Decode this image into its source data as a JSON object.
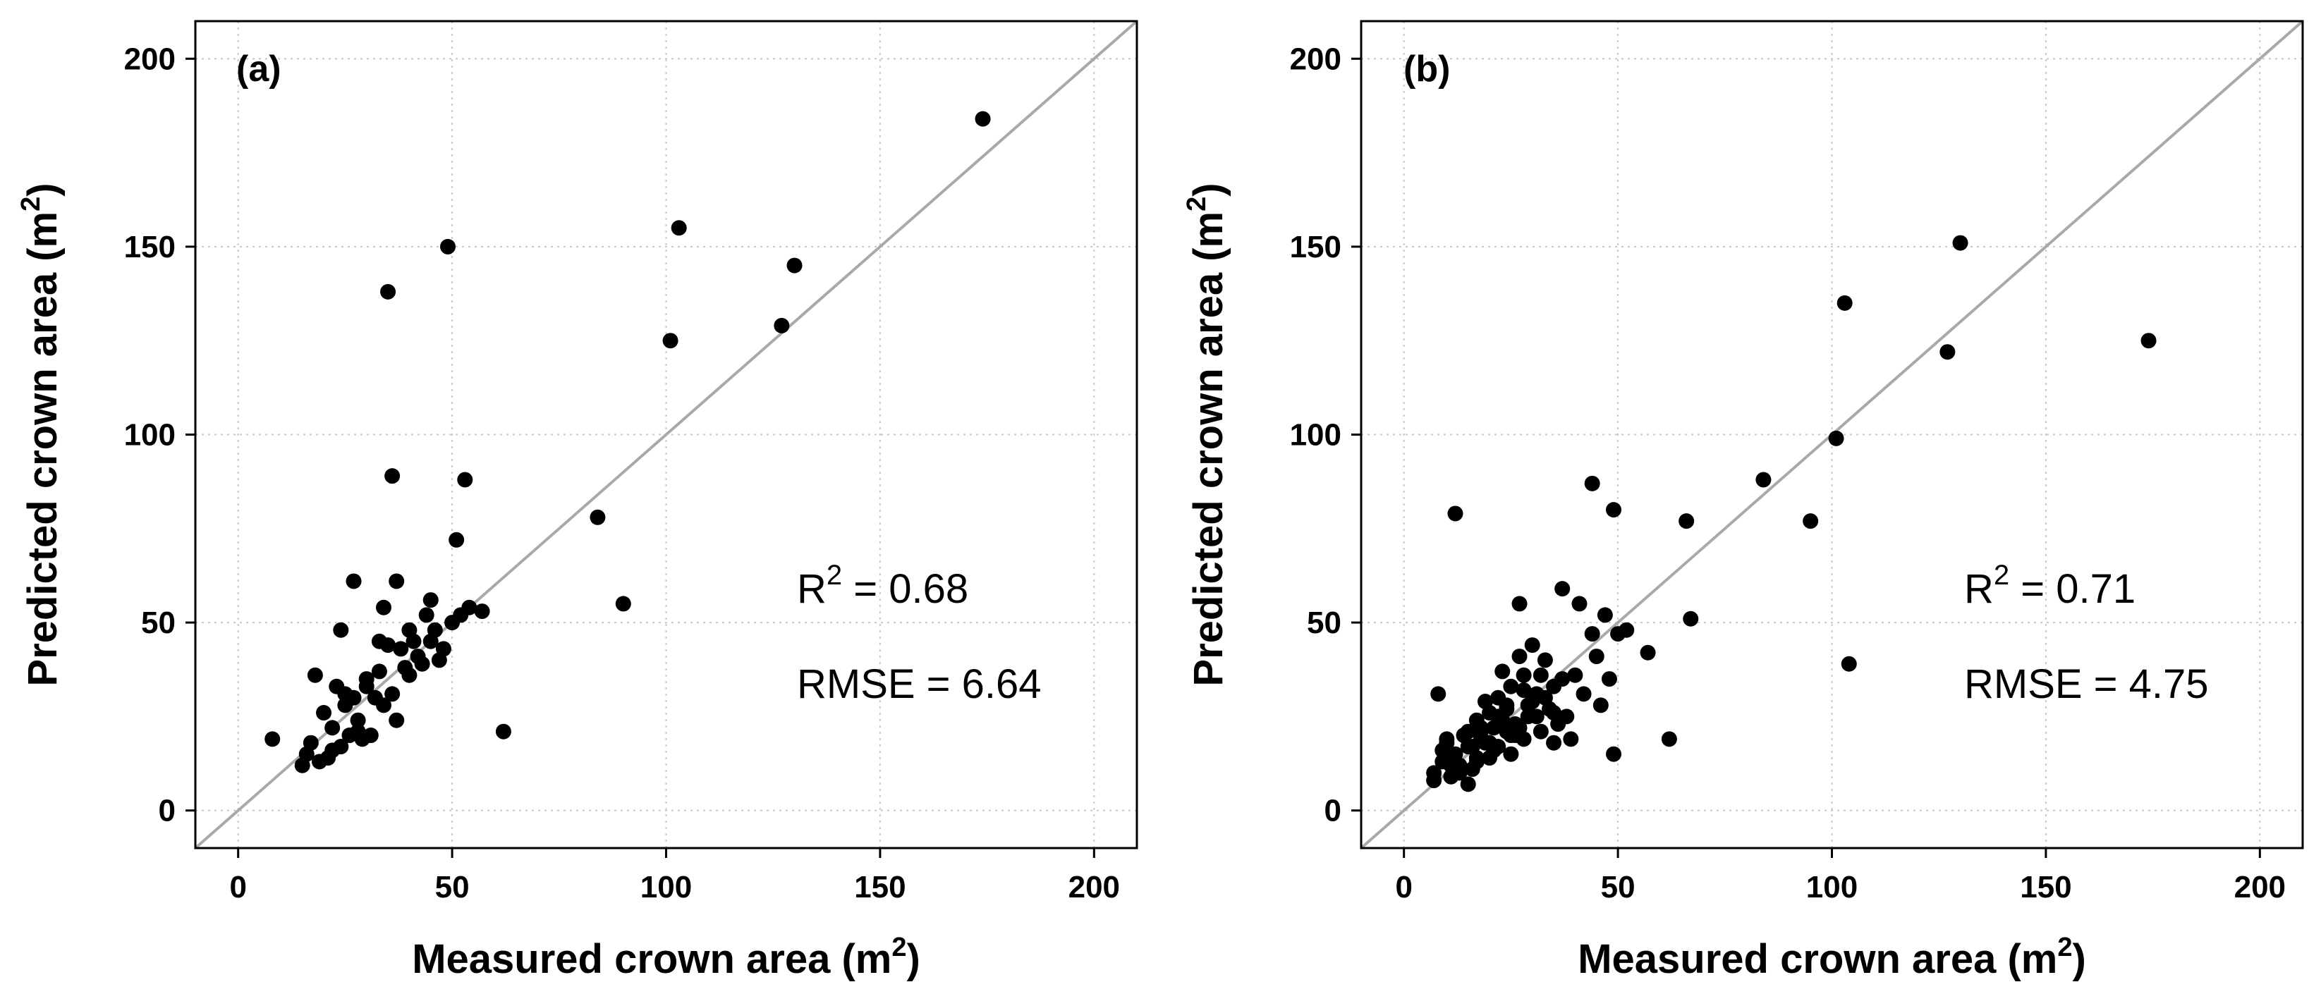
{
  "chart_data": [
    {
      "type": "scatter",
      "panel_label": "(a)",
      "xlabel": "Measured crown area (m",
      "ylabel": "Predicted crown area (m",
      "label_superscript": "2",
      "label_close": ")",
      "xlim": [
        -10,
        210
      ],
      "ylim": [
        -10,
        210
      ],
      "xticks": [
        0,
        50,
        100,
        150,
        200
      ],
      "yticks": [
        0,
        50,
        100,
        150,
        200
      ],
      "grid": true,
      "one_to_one_line": true,
      "annotations": {
        "r2_base": "R",
        "r2_sup": "2",
        "r2_rest": " = 0.68",
        "rmse": "RMSE = 6.64"
      },
      "x": [
        174,
        103,
        130,
        127,
        101,
        49,
        35,
        36,
        37,
        53,
        51,
        84,
        90,
        62,
        57,
        54,
        8,
        15,
        16,
        17,
        18,
        19,
        20,
        21,
        22,
        22,
        23,
        24,
        24,
        25,
        25,
        26,
        27,
        27,
        28,
        28,
        29,
        30,
        30,
        31,
        32,
        33,
        33,
        34,
        34,
        35,
        36,
        37,
        38,
        39,
        40,
        40,
        41,
        42,
        43,
        44,
        45,
        45,
        46,
        47,
        48,
        50,
        52
      ],
      "y": [
        184,
        155,
        145,
        129,
        125,
        150,
        138,
        89,
        61,
        88,
        72,
        78,
        55,
        21,
        53,
        54,
        19,
        12,
        15,
        18,
        36,
        13,
        26,
        14,
        22,
        16,
        33,
        48,
        17,
        28,
        31,
        20,
        30,
        61,
        21,
        24,
        19,
        35,
        33,
        20,
        30,
        45,
        37,
        54,
        28,
        44,
        31,
        24,
        43,
        38,
        36,
        48,
        45,
        41,
        39,
        52,
        56,
        45,
        48,
        40,
        43,
        50,
        52
      ]
    },
    {
      "type": "scatter",
      "panel_label": "(b)",
      "xlabel": "Measured crown area (m",
      "ylabel": "Predicted crown area (m",
      "label_superscript": "2",
      "label_close": ")",
      "xlim": [
        -10,
        210
      ],
      "ylim": [
        -10,
        210
      ],
      "xticks": [
        0,
        50,
        100,
        150,
        200
      ],
      "yticks": [
        0,
        50,
        100,
        150,
        200
      ],
      "grid": true,
      "one_to_one_line": true,
      "annotations": {
        "r2_base": "R",
        "r2_sup": "2",
        "r2_rest": " = 0.71",
        "rmse": "RMSE = 4.75"
      },
      "x": [
        130,
        103,
        127,
        101,
        174,
        95,
        84,
        104,
        66,
        67,
        62,
        49,
        44,
        49,
        12,
        8,
        7,
        9,
        10,
        11,
        12,
        13,
        14,
        15,
        15,
        16,
        17,
        17,
        18,
        18,
        19,
        20,
        20,
        21,
        22,
        22,
        23,
        24,
        24,
        25,
        25,
        26,
        27,
        27,
        28,
        28,
        29,
        30,
        30,
        31,
        32,
        33,
        34,
        35,
        35,
        36,
        37,
        38,
        39,
        40,
        41,
        42,
        44,
        45,
        46,
        47,
        48,
        50,
        52,
        57,
        7,
        9,
        11,
        13,
        15,
        17,
        19,
        21,
        23,
        25,
        27,
        29,
        31,
        33,
        35,
        37,
        20,
        22,
        16,
        14,
        10,
        26,
        28,
        32,
        24,
        18
      ],
      "y": [
        151,
        135,
        122,
        99,
        125,
        77,
        88,
        39,
        77,
        51,
        19,
        80,
        87,
        15,
        79,
        31,
        10,
        13,
        19,
        9,
        15,
        12,
        20,
        17,
        7,
        11,
        24,
        14,
        21,
        19,
        29,
        18,
        26,
        22,
        17,
        30,
        37,
        21,
        27,
        33,
        15,
        23,
        41,
        55,
        19,
        36,
        25,
        29,
        44,
        31,
        21,
        40,
        27,
        33,
        18,
        23,
        59,
        25,
        19,
        36,
        55,
        31,
        47,
        41,
        28,
        52,
        35,
        47,
        48,
        42,
        8,
        16,
        12,
        10,
        21,
        13,
        18,
        16,
        24,
        20,
        22,
        28,
        25,
        30,
        26,
        35,
        14,
        25,
        17,
        20,
        18,
        20,
        32,
        36,
        28,
        22
      ]
    }
  ]
}
